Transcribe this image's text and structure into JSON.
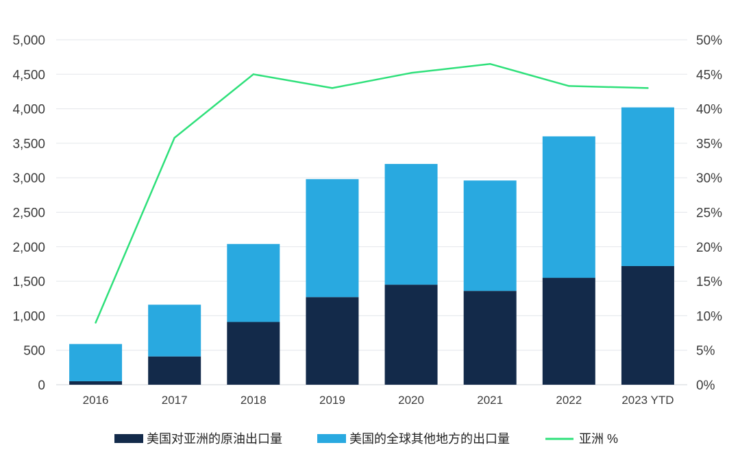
{
  "colors": {
    "asia_exports": "#132a4a",
    "rest_of_world_exports": "#29a9e0",
    "asia_share": "#2ee07a",
    "grid": "#e3e6ea"
  },
  "chart_data": {
    "type": "bar",
    "stacked": true,
    "categories": [
      "2016",
      "2017",
      "2018",
      "2019",
      "2020",
      "2021",
      "2022",
      "2023 YTD"
    ],
    "series": [
      {
        "name": "美国对亚洲的原油出口量",
        "type": "bar",
        "axis": "left",
        "color_key": "asia_exports",
        "values": [
          50,
          410,
          910,
          1270,
          1450,
          1360,
          1550,
          1720
        ]
      },
      {
        "name": "美国的全球其他地方的出口量",
        "type": "bar",
        "axis": "left",
        "color_key": "rest_of_world_exports",
        "values": [
          540,
          750,
          1130,
          1710,
          1750,
          1600,
          2050,
          2300
        ]
      },
      {
        "name": "亚洲 %",
        "type": "line",
        "axis": "right",
        "color_key": "asia_share",
        "values": [
          9,
          35.8,
          45,
          43,
          45.2,
          46.5,
          43.3,
          43
        ]
      }
    ],
    "y_left": {
      "ylim": [
        0,
        5000
      ],
      "ticks": [
        0,
        500,
        1000,
        1500,
        2000,
        2500,
        3000,
        3500,
        4000,
        4500,
        5000
      ],
      "tick_labels": [
        "0",
        "500",
        "1,000",
        "1,500",
        "2,000",
        "2,500",
        "3,000",
        "3,500",
        "4,000",
        "4,500",
        "5,000"
      ]
    },
    "y_right": {
      "ylim": [
        0,
        50
      ],
      "ticks": [
        0,
        5,
        10,
        15,
        20,
        25,
        30,
        35,
        40,
        45,
        50
      ],
      "tick_labels": [
        "0%",
        "5%",
        "10%",
        "15%",
        "20%",
        "25%",
        "30%",
        "35%",
        "40%",
        "45%",
        "50%"
      ]
    },
    "grid": true,
    "legend_position": "bottom",
    "title": "",
    "xlabel": "",
    "ylabel": ""
  }
}
